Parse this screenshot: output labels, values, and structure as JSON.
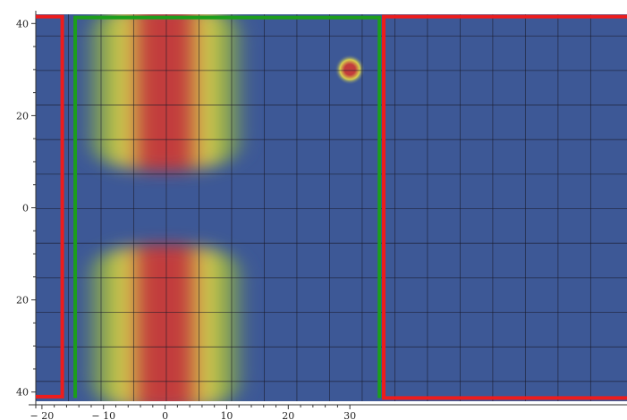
{
  "chart_data": {
    "type": "heatmap",
    "title": "",
    "xlabel": "",
    "ylabel": "",
    "xlim": [
      -21,
      75
    ],
    "ylim": [
      -42,
      42
    ],
    "grid": true,
    "x_ticks": [
      {
        "value": -20,
        "label": "− 20"
      },
      {
        "value": -10,
        "label": "− 10"
      },
      {
        "value": 0,
        "label": "0"
      },
      {
        "value": 10,
        "label": "10"
      },
      {
        "value": 20,
        "label": "20"
      },
      {
        "value": 30,
        "label": "30"
      }
    ],
    "y_ticks": [
      {
        "value": 40,
        "label": "40"
      },
      {
        "value": 20,
        "label": "20"
      },
      {
        "value": 0,
        "label": "0"
      },
      {
        "value": -20,
        "label": "20"
      },
      {
        "value": -40,
        "label": "40"
      }
    ],
    "grid_x": [
      -15.7,
      -10.4,
      -5.1,
      0.2,
      5.5,
      10.8,
      16.1,
      21.4,
      26.7,
      32,
      37.3,
      42.6,
      47.9,
      53.2,
      58.5,
      63.8,
      69.1
    ],
    "grid_y": [
      37.3,
      29.8,
      22.3,
      14.8,
      7.3,
      -0.2,
      -7.7,
      -15.2,
      -22.7,
      -30.2,
      -37.7
    ],
    "colormap": {
      "low": "#3d5896",
      "mid": "#d7cf4e",
      "high": "#c23c3c"
    },
    "hot_regions": [
      {
        "name": "upper-band",
        "x_range": [
          -10,
          10
        ],
        "y_range": [
          10,
          42
        ]
      },
      {
        "name": "lower-band",
        "x_range": [
          -10,
          10
        ],
        "y_range": [
          -42,
          -10
        ]
      },
      {
        "name": "small-spot",
        "center": [
          30,
          30
        ]
      }
    ],
    "annotations": [
      {
        "name": "red-rectangle-left",
        "color": "#ee1c1c",
        "points": [
          [
            -21,
            41.5
          ],
          [
            -16.7,
            41.5
          ],
          [
            -16.7,
            -41
          ],
          [
            -21,
            -41
          ]
        ]
      },
      {
        "name": "green-rectangle",
        "color": "#1c9e1c",
        "points": [
          [
            -14.6,
            -41.3
          ],
          [
            -14.6,
            41.3
          ],
          [
            34.8,
            41.3
          ],
          [
            34.8,
            -41.3
          ]
        ]
      },
      {
        "name": "red-rectangle-right",
        "color": "#ee1c1c",
        "points": [
          [
            75,
            41.5
          ],
          [
            35.5,
            41.5
          ],
          [
            35.5,
            -41.3
          ],
          [
            75,
            -41.3
          ]
        ]
      }
    ]
  }
}
